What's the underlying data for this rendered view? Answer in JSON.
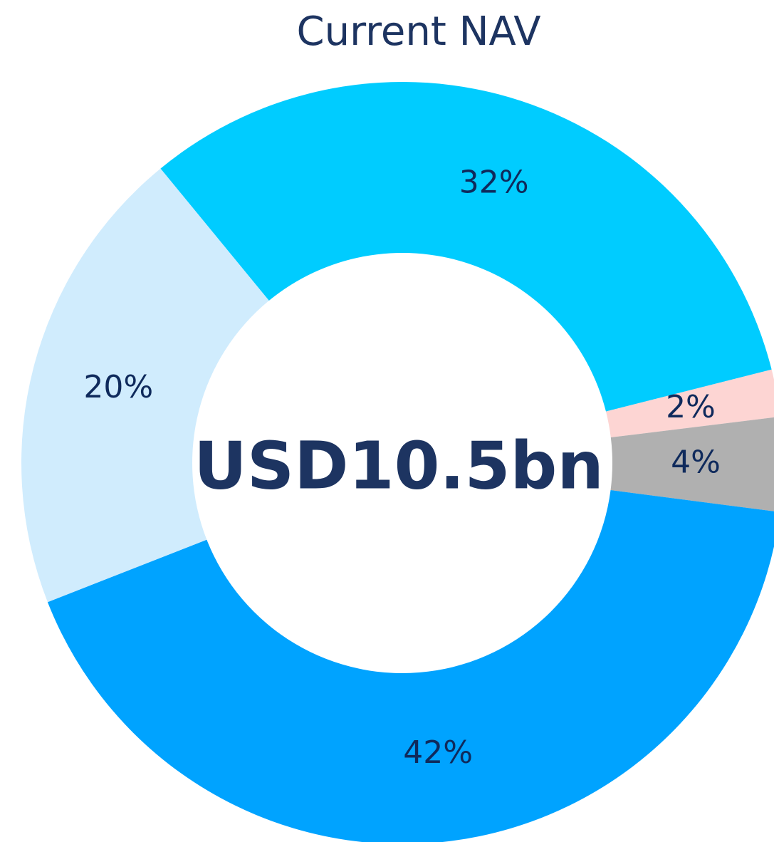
{
  "chart_data": {
    "type": "pie",
    "title": "Current NAV",
    "center_label": "USD10.5bn",
    "values": [
      32,
      2,
      4,
      42,
      20
    ],
    "value_labels": [
      "32%",
      "2%",
      "4%",
      "42%",
      "20%"
    ],
    "colors": [
      "#00ccff",
      "#fdd5d3",
      "#b0b0b0",
      "#00a3ff",
      "#d0ecfd"
    ]
  }
}
